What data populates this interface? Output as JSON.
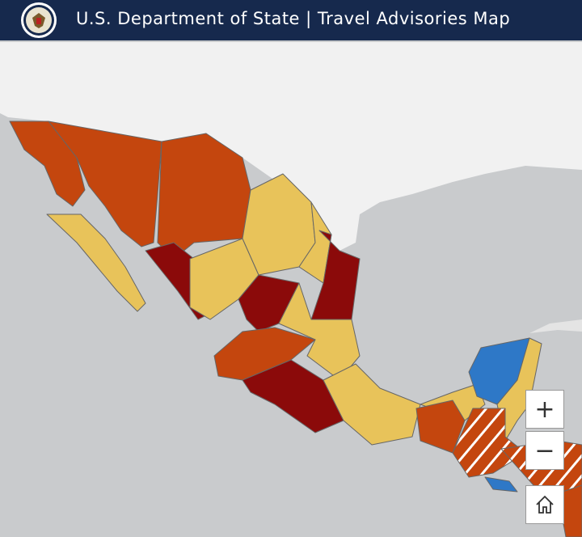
{
  "header": {
    "title": "U.S. Department of State | Travel Advisories Map"
  },
  "controls": {
    "zoom_in": "+",
    "zoom_out": "−"
  }
}
